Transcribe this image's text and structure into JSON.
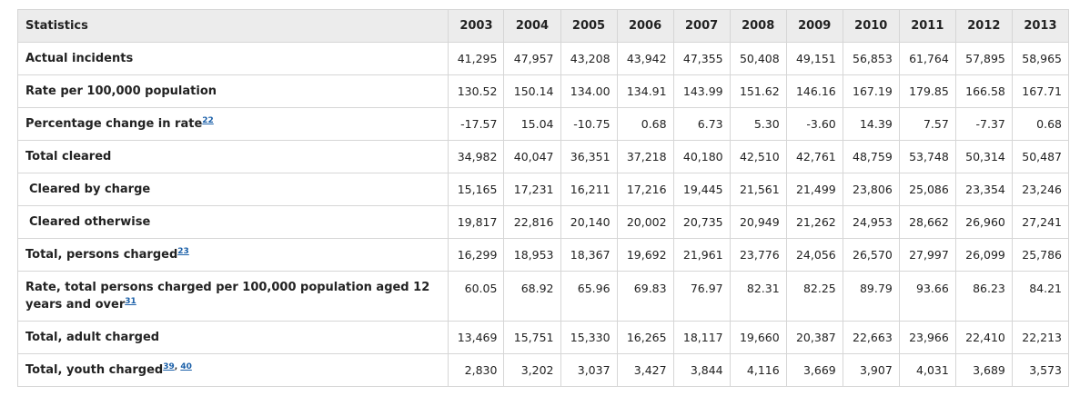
{
  "table": {
    "header_label": "Statistics",
    "years": [
      "2003",
      "2004",
      "2005",
      "2006",
      "2007",
      "2008",
      "2009",
      "2010",
      "2011",
      "2012",
      "2013"
    ],
    "rows": [
      {
        "label": "Actual incidents",
        "indent": false,
        "footnotes": [],
        "values": [
          "41,295",
          "47,957",
          "43,208",
          "43,942",
          "47,355",
          "50,408",
          "49,151",
          "56,853",
          "61,764",
          "57,895",
          "58,965"
        ]
      },
      {
        "label": "Rate per 100,000 population",
        "indent": false,
        "footnotes": [],
        "values": [
          "130.52",
          "150.14",
          "134.00",
          "134.91",
          "143.99",
          "151.62",
          "146.16",
          "167.19",
          "179.85",
          "166.58",
          "167.71"
        ]
      },
      {
        "label": "Percentage change in rate",
        "indent": false,
        "footnotes": [
          "22"
        ],
        "values": [
          "-17.57",
          "15.04",
          "-10.75",
          "0.68",
          "6.73",
          "5.30",
          "-3.60",
          "14.39",
          "7.57",
          "-7.37",
          "0.68"
        ]
      },
      {
        "label": "Total cleared",
        "indent": false,
        "footnotes": [],
        "values": [
          "34,982",
          "40,047",
          "36,351",
          "37,218",
          "40,180",
          "42,510",
          "42,761",
          "48,759",
          "53,748",
          "50,314",
          "50,487"
        ]
      },
      {
        "label": "Cleared by charge",
        "indent": true,
        "footnotes": [],
        "values": [
          "15,165",
          "17,231",
          "16,211",
          "17,216",
          "19,445",
          "21,561",
          "21,499",
          "23,806",
          "25,086",
          "23,354",
          "23,246"
        ]
      },
      {
        "label": "Cleared otherwise",
        "indent": true,
        "footnotes": [],
        "values": [
          "19,817",
          "22,816",
          "20,140",
          "20,002",
          "20,735",
          "20,949",
          "21,262",
          "24,953",
          "28,662",
          "26,960",
          "27,241"
        ]
      },
      {
        "label": "Total, persons charged",
        "indent": false,
        "footnotes": [
          "23"
        ],
        "values": [
          "16,299",
          "18,953",
          "18,367",
          "19,692",
          "21,961",
          "23,776",
          "24,056",
          "26,570",
          "27,997",
          "26,099",
          "25,786"
        ]
      },
      {
        "label": "Rate, total persons charged per 100,000 population aged 12 years and over",
        "indent": false,
        "tall": true,
        "footnotes": [
          "31"
        ],
        "values": [
          "60.05",
          "68.92",
          "65.96",
          "69.83",
          "76.97",
          "82.31",
          "82.25",
          "89.79",
          "93.66",
          "86.23",
          "84.21"
        ]
      },
      {
        "label": "Total, adult charged",
        "indent": false,
        "footnotes": [],
        "values": [
          "13,469",
          "15,751",
          "15,330",
          "16,265",
          "18,117",
          "19,660",
          "20,387",
          "22,663",
          "23,966",
          "22,410",
          "22,213"
        ]
      },
      {
        "label": "Total, youth charged",
        "indent": false,
        "footnotes": [
          "39",
          "40"
        ],
        "values": [
          "2,830",
          "3,202",
          "3,037",
          "3,427",
          "3,844",
          "4,116",
          "3,669",
          "3,907",
          "4,031",
          "3,689",
          "3,573"
        ]
      }
    ]
  },
  "colors": {
    "header_bg": "#ececec",
    "border": "#d6d6d6",
    "link": "#1a5fa8"
  }
}
